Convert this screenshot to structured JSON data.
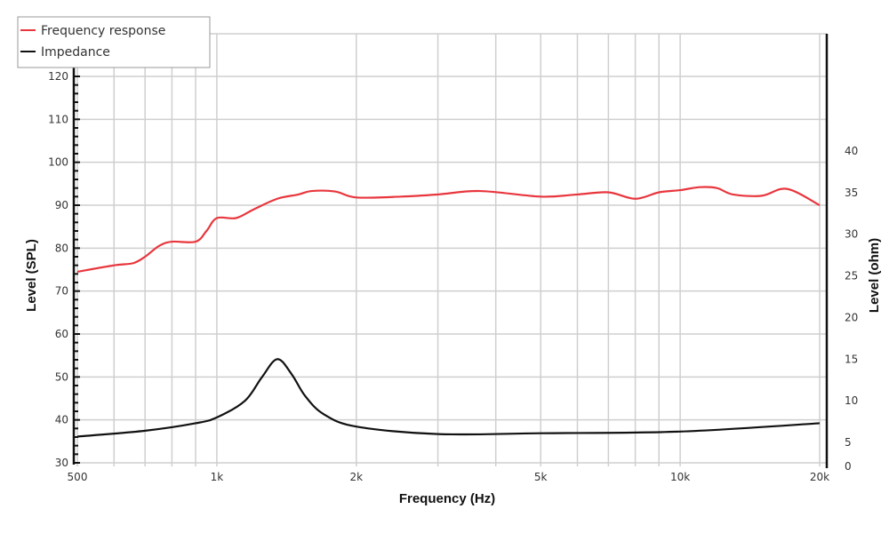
{
  "chart_data": {
    "type": "line",
    "title": "",
    "xlabel": "Frequency (Hz)",
    "ylabel": "Level (SPL)",
    "y2label": "Level (ohm)",
    "xscale": "log",
    "xlim": [
      500,
      20000
    ],
    "ylim": [
      30,
      120
    ],
    "y2lim": [
      0,
      40
    ],
    "grid": true,
    "legend_position": "top-left",
    "x_ticks": [
      {
        "v": 500,
        "label": "500"
      },
      {
        "v": 1000,
        "label": "1k"
      },
      {
        "v": 2000,
        "label": "2k"
      },
      {
        "v": 5000,
        "label": "5k"
      },
      {
        "v": 10000,
        "label": "10k"
      },
      {
        "v": 20000,
        "label": "20k"
      }
    ],
    "x_gridlines": [
      500,
      600,
      700,
      800,
      900,
      1000,
      2000,
      3000,
      4000,
      5000,
      6000,
      7000,
      8000,
      9000,
      10000,
      20000
    ],
    "y_ticks": [
      30,
      40,
      50,
      60,
      70,
      80,
      90,
      100,
      110,
      120
    ],
    "y2_ticks": [
      0,
      5,
      10,
      15,
      20,
      25,
      30,
      35,
      40
    ],
    "series": [
      {
        "name": "Frequency response",
        "axis": "left",
        "color": "#e8363d",
        "x": [
          500,
          600,
          660,
          700,
          750,
          800,
          900,
          950,
          1000,
          1100,
          1200,
          1350,
          1500,
          1600,
          1800,
          2000,
          2500,
          3000,
          3700,
          5000,
          6000,
          7000,
          8000,
          9000,
          10000,
          11000,
          12000,
          13000,
          15000,
          17000,
          20000
        ],
        "y": [
          74.5,
          76,
          76.5,
          78,
          80.5,
          81.5,
          81.5,
          84,
          87,
          87,
          89,
          91.5,
          92.5,
          93.3,
          93.2,
          91.8,
          92,
          92.5,
          93.3,
          92,
          92.5,
          93,
          91.5,
          93,
          93.5,
          94.2,
          94,
          92.5,
          92.2,
          93.8,
          90
        ]
      },
      {
        "name": "Impedance",
        "axis": "right",
        "color": "#111111",
        "x": [
          500,
          700,
          900,
          1000,
          1150,
          1250,
          1350,
          1450,
          1550,
          1700,
          2000,
          3000,
          5000,
          10000,
          20000
        ],
        "y": [
          5.7,
          6.4,
          7.3,
          8.0,
          10.0,
          12.8,
          15.0,
          13.2,
          10.6,
          8.4,
          6.9,
          6.0,
          6.1,
          6.3,
          7.3
        ]
      }
    ]
  }
}
